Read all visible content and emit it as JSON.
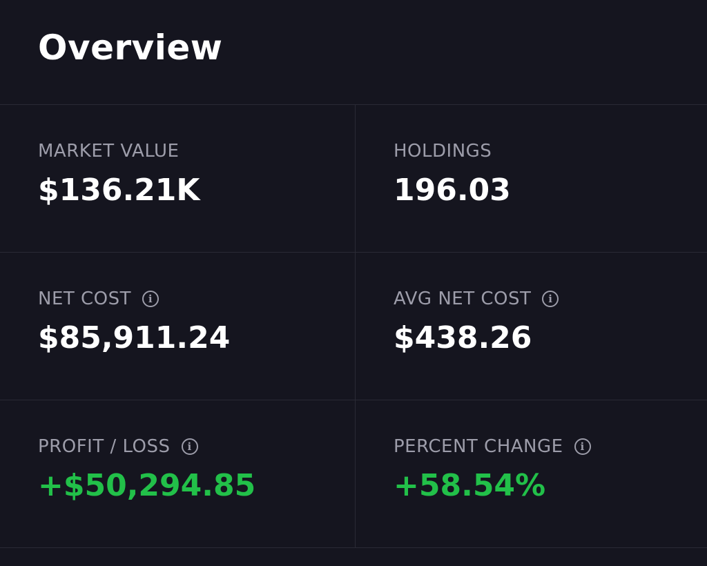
{
  "overview": {
    "title": "Overview"
  },
  "metrics": {
    "market_value": {
      "label": "MARKET VALUE",
      "value": "$136.21K"
    },
    "holdings": {
      "label": "HOLDINGS",
      "value": "196.03"
    },
    "net_cost": {
      "label": "NET COST",
      "value": "$85,911.24",
      "icon": "info-icon"
    },
    "avg_net_cost": {
      "label": "AVG NET COST",
      "value": "$438.26",
      "icon": "info-icon"
    },
    "profit_loss": {
      "label": "PROFIT / LOSS",
      "value": "+$50,294.85",
      "icon": "info-icon"
    },
    "percent_change": {
      "label": "PERCENT CHANGE",
      "value": "+58.54%",
      "icon": "info-icon"
    }
  },
  "colors": {
    "background": "#15151f",
    "divider": "#2a2a35",
    "label": "#9d9daa",
    "value": "#ffffff",
    "positive": "#22c049"
  }
}
